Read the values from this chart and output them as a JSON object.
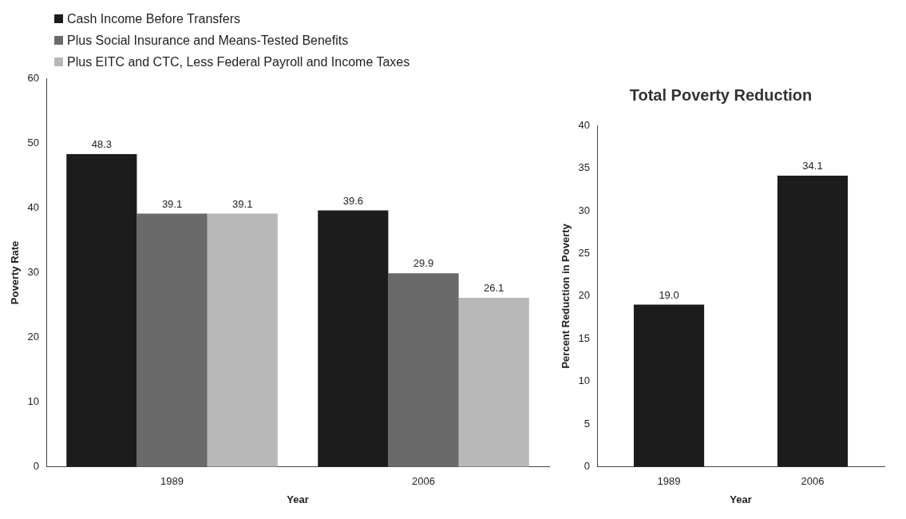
{
  "chart_data": [
    {
      "type": "bar",
      "categories": [
        "1989",
        "2006"
      ],
      "xlabel": "Year",
      "ylabel": "Poverty Rate",
      "ylim": [
        0,
        60
      ],
      "yticks": [
        0,
        10,
        20,
        30,
        40,
        50,
        60
      ],
      "grid": false,
      "legend": "top left",
      "data_labels": true,
      "series": [
        {
          "name": "Cash Income Before Transfers",
          "color": "#1c1c1c",
          "values": [
            48.3,
            39.6
          ]
        },
        {
          "name": "Plus Social Insurance and Means-Tested Benefits",
          "color": "#6a6a6a",
          "values": [
            39.1,
            29.9
          ]
        },
        {
          "name": "Plus EITC and CTC, Less Federal Payroll and Income Taxes",
          "color": "#b8b8b8",
          "values": [
            39.1,
            26.1
          ]
        }
      ]
    },
    {
      "type": "bar",
      "title": "Total Poverty Reduction",
      "categories": [
        "1989",
        "2006"
      ],
      "xlabel": "Year",
      "ylabel": "Percent Reduction in Poverty",
      "ylim": [
        0,
        40
      ],
      "yticks": [
        0,
        5,
        10,
        15,
        20,
        25,
        30,
        35,
        40
      ],
      "grid": false,
      "values": [
        19.0,
        34.1
      ],
      "color": "#1c1c1c",
      "value_labels": [
        "19.0",
        "34.1"
      ]
    }
  ]
}
